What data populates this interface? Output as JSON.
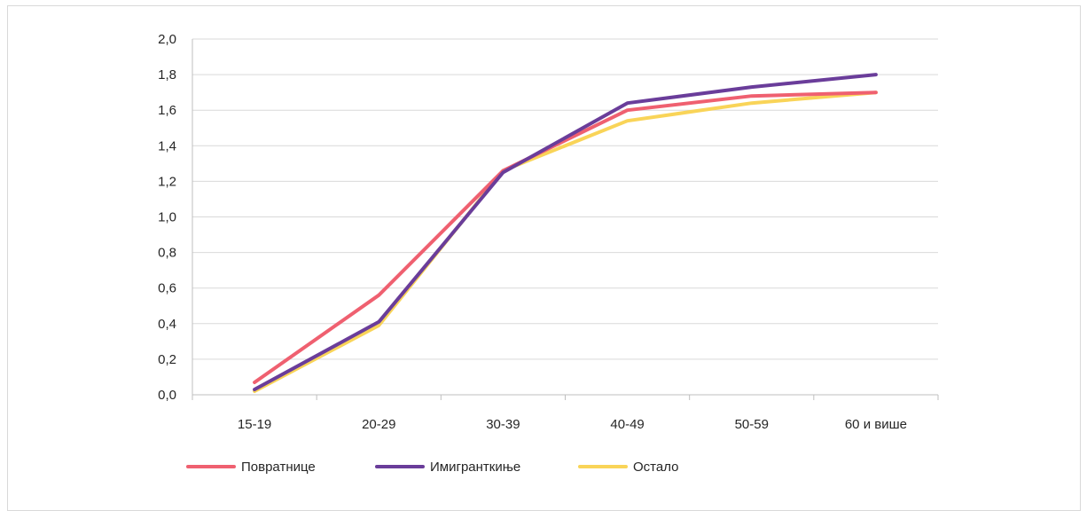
{
  "chart_data": {
    "type": "line",
    "title": "",
    "xlabel": "",
    "ylabel": "",
    "categories": [
      "15-19",
      "20-29",
      "30-39",
      "40-49",
      "50-59",
      "60 и више"
    ],
    "ylim": [
      0,
      2.0
    ],
    "yticks": [
      "0,0",
      "0,2",
      "0,4",
      "0,6",
      "0,8",
      "1,0",
      "1,2",
      "1,4",
      "1,6",
      "1,8",
      "2,0"
    ],
    "grid": true,
    "legend_position": "bottom-left",
    "series": [
      {
        "name": "Повратнице",
        "color": "#ef6070",
        "values": [
          0.07,
          0.56,
          1.26,
          1.6,
          1.68,
          1.7
        ]
      },
      {
        "name": "Имигранткиње",
        "color": "#6a3d9a",
        "values": [
          0.03,
          0.41,
          1.25,
          1.64,
          1.73,
          1.8
        ]
      },
      {
        "name": "Остало",
        "color": "#f9d458",
        "values": [
          0.02,
          0.39,
          1.26,
          1.54,
          1.64,
          1.7
        ]
      }
    ]
  }
}
